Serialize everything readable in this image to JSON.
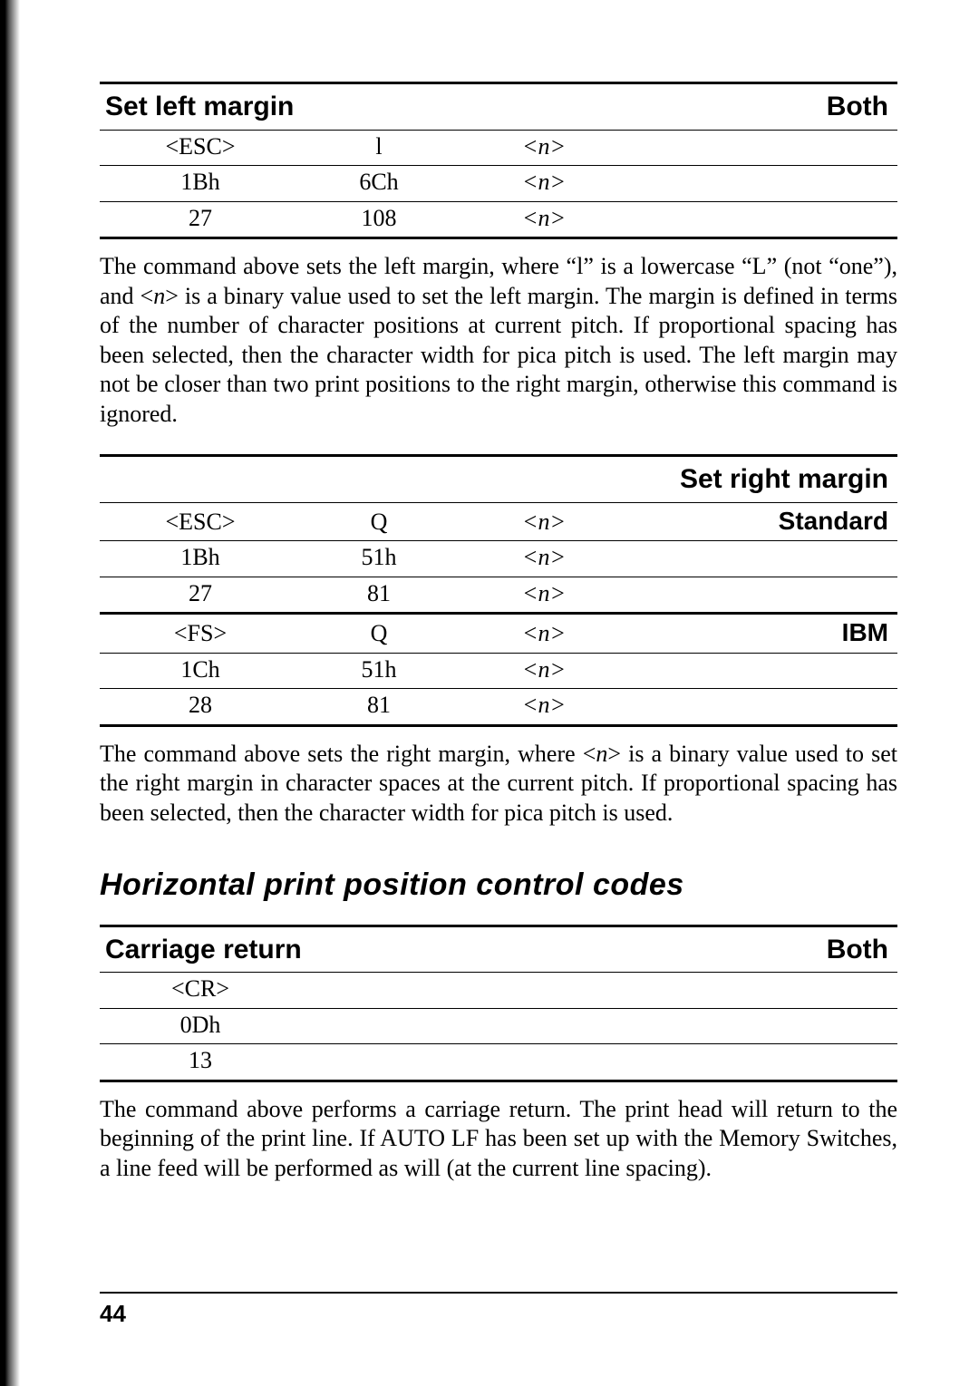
{
  "tables": {
    "set_left_margin": {
      "title": "Set left margin",
      "mode": "Both",
      "rows": [
        {
          "a": "<ESC>",
          "b": "l",
          "c": "<n>",
          "d": ""
        },
        {
          "a": "1Bh",
          "b": "6Ch",
          "c": "<n>",
          "d": ""
        },
        {
          "a": "27",
          "b": "108",
          "c": "<n>",
          "d": ""
        }
      ]
    },
    "set_right_margin": {
      "title": "Set right margin",
      "mode": "",
      "groups": [
        {
          "tag": "Standard",
          "rows": [
            {
              "a": "<ESC>",
              "b": "Q",
              "c": "<n>"
            },
            {
              "a": "1Bh",
              "b": "51h",
              "c": "<n>"
            },
            {
              "a": "27",
              "b": "81",
              "c": "<n>"
            }
          ]
        },
        {
          "tag": "IBM",
          "rows": [
            {
              "a": "<FS>",
              "b": "Q",
              "c": "<n>"
            },
            {
              "a": "1Ch",
              "b": "51h",
              "c": "<n>"
            },
            {
              "a": "28",
              "b": "81",
              "c": "<n>"
            }
          ]
        }
      ]
    },
    "carriage_return": {
      "title": "Carriage return",
      "mode": "Both",
      "rows": [
        {
          "a": "<CR>"
        },
        {
          "a": "0Dh"
        },
        {
          "a": "13"
        }
      ]
    }
  },
  "paras": {
    "p1a": "The command above sets the left margin, where “l” is a lowercase “L” (not “one”), and <",
    "p1b": "> is a binary value used to set the left margin. The margin is defined in terms of the number of character positions at current pitch. If proportional spacing has been selected, then the character width for pica pitch is used. The left margin may not be closer than two print positions to the right margin, otherwise this command is ignored.",
    "p2a": "The command above sets the right margin, where <",
    "p2b": "> is a binary value used to set the right margin in character spaces at the current pitch. If proportional spacing has been selected, then the character width for pica pitch is used.",
    "p3": "The command above performs a carriage return. The print head will return to the beginning of the print line. If AUTO LF has been set up with the Memory Switches, a line feed will be performed as will (at the current line spacing).",
    "n": "n"
  },
  "section_heading": "Horizontal print position control codes",
  "page_number": "44"
}
